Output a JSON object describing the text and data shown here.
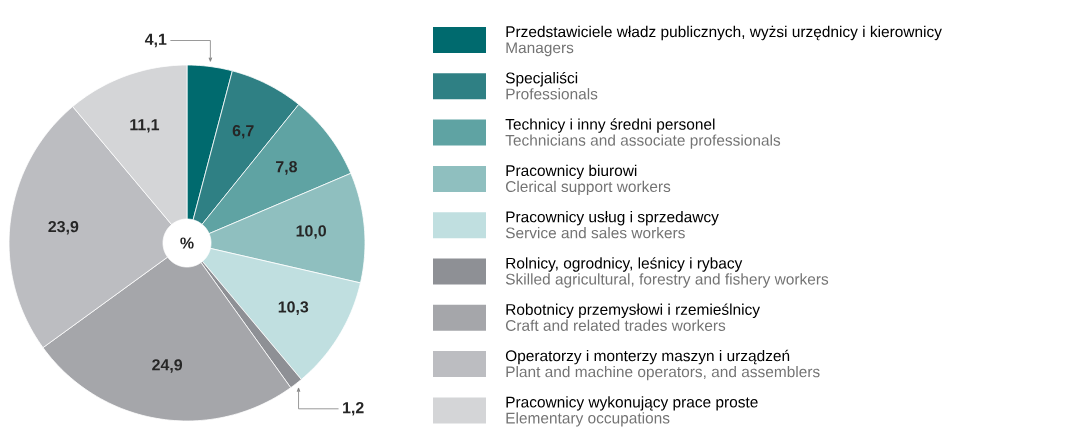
{
  "chart_data": {
    "type": "donut",
    "title": "%",
    "categories": [
      "Przedstawiciele władz publicznych, wyżsi urzędnicy i kierownicy",
      "Specjaliści",
      "Technicy i inny średni personel",
      "Pracownicy biurowi",
      "Pracownicy usług i sprzedawcy",
      "Rolnicy, ogrodnicy, leśnicy i rybacy",
      "Robotnicy przemysłowi i rzemieślnicy",
      "Operatorzy i monterzy maszyn i urządzeń",
      "Pracownicy wykonujący prace proste"
    ],
    "annotations": [
      "Managers",
      "Professionals",
      "Technicians and associate professionals",
      "Clerical support workers",
      "Service and sales workers",
      "Skilled agricultural, forestry and fishery workers",
      "Craft and related trades workers",
      "Plant and machine operators, and assemblers",
      "Elementary occupations"
    ],
    "values": [
      4.1,
      6.7,
      7.8,
      10.0,
      10.3,
      1.2,
      24.9,
      23.9,
      11.1
    ],
    "value_labels": [
      "4,1",
      "6,7",
      "7,8",
      "10,0",
      "10,3",
      "1,2",
      "24,9",
      "23,9",
      "11,1"
    ],
    "colors": [
      "#006a6e",
      "#2f8084",
      "#5fa3a3",
      "#8fbfbf",
      "#c0dfe0",
      "#8e9095",
      "#a5a6aa",
      "#bcbdc1",
      "#d4d5d7"
    ],
    "legend": "right"
  }
}
